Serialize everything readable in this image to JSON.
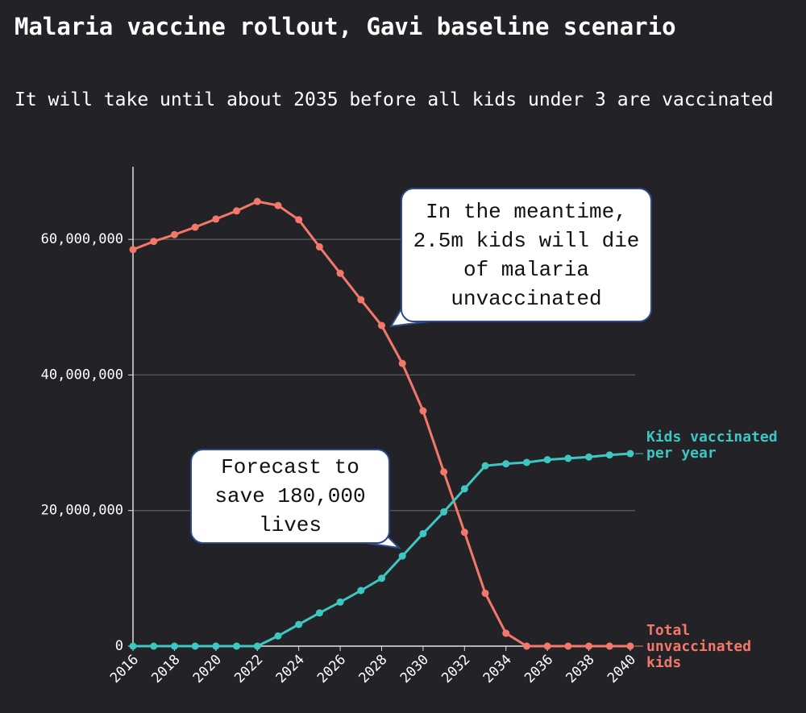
{
  "chart_data": {
    "type": "line",
    "title": "Malaria vaccine rollout, Gavi baseline scenario",
    "subtitle": "It will take until about 2035 before all kids under 3 are vaccinated",
    "x": [
      2016,
      2017,
      2018,
      2019,
      2020,
      2021,
      2022,
      2023,
      2024,
      2025,
      2026,
      2027,
      2028,
      2029,
      2030,
      2031,
      2032,
      2033,
      2034,
      2035,
      2036,
      2037,
      2038,
      2039,
      2040
    ],
    "series": [
      {
        "name": "Total unvaccinated kids",
        "color": "#f4786a",
        "values": [
          58500000,
          59700000,
          60700000,
          61800000,
          63000000,
          64200000,
          65600000,
          65000000,
          62900000,
          58900000,
          55000000,
          51100000,
          47300000,
          41700000,
          34700000,
          25700000,
          16800000,
          7800000,
          1900000,
          0,
          0,
          0,
          0,
          0,
          0
        ]
      },
      {
        "name": "Kids vaccinated per year",
        "color": "#3ec6c0",
        "values": [
          0,
          0,
          0,
          0,
          0,
          0,
          0,
          1500000,
          3200000,
          4900000,
          6500000,
          8200000,
          10000000,
          13300000,
          16600000,
          19800000,
          23200000,
          26600000,
          26900000,
          27100000,
          27500000,
          27700000,
          27900000,
          28200000,
          28400000
        ]
      }
    ],
    "xlim": [
      2016,
      2040
    ],
    "xticks": [
      2016,
      2018,
      2020,
      2022,
      2024,
      2026,
      2028,
      2030,
      2032,
      2034,
      2036,
      2038,
      2040
    ],
    "ylim": [
      0,
      70000000
    ],
    "yticks": [
      0,
      {
        "value": 20000000,
        "label": "20,000,000"
      },
      {
        "value": 40000000,
        "label": "40,000,000"
      },
      {
        "value": 60000000,
        "label": "60,000,000"
      }
    ],
    "grid": true,
    "annotations": [
      "In the meantime, 2.5m kids will die of malaria unvaccinated",
      "Forecast to save 180,000 lives"
    ]
  }
}
